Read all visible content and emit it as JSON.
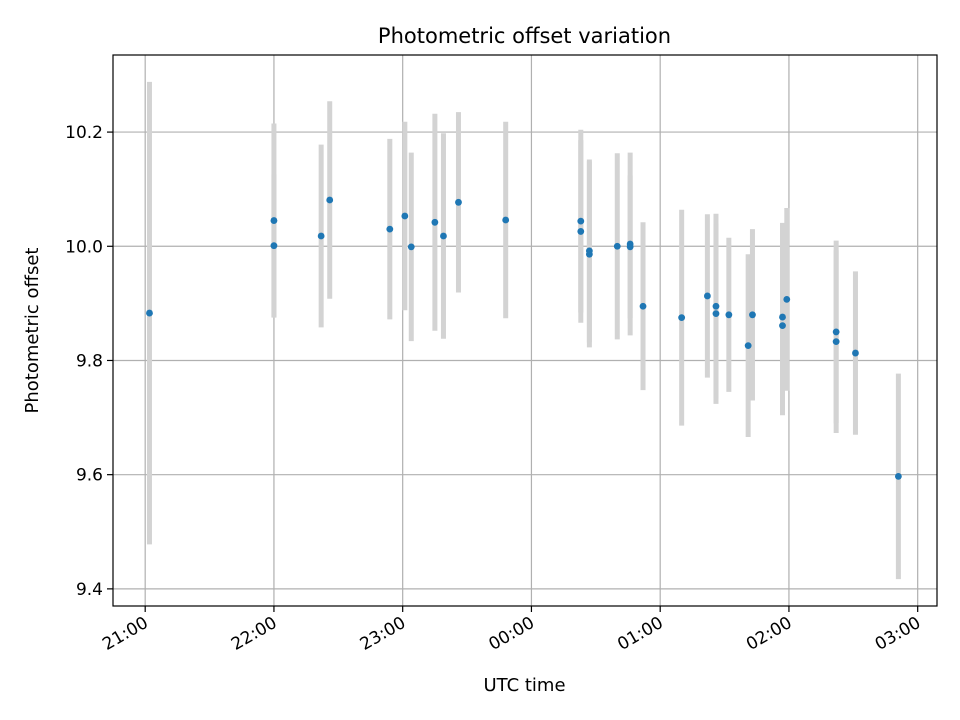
{
  "chart_data": {
    "type": "scatter",
    "title": "Photometric offset variation",
    "xlabel": "UTC time",
    "ylabel": "Photometric offset",
    "x_unit": "UTC time (hours after 21:00)",
    "xlim": [
      "20:45",
      "03:09"
    ],
    "ylim": [
      9.37,
      10.335
    ],
    "x_ticks": [
      "21:00",
      "22:00",
      "23:00",
      "00:00",
      "01:00",
      "02:00",
      "03:00"
    ],
    "y_ticks": [
      "9.4",
      "9.6",
      "9.8",
      "10.0",
      "10.2"
    ],
    "grid": true,
    "marker_color": "#1f77b4",
    "errorbar_color": "#d3d3d3",
    "series": [
      {
        "points": [
          {
            "x": "21:02",
            "y": 9.883,
            "err": 0.405
          },
          {
            "x": "22:00",
            "y": 10.001,
            "err": 0.125
          },
          {
            "x": "22:00",
            "y": 10.045,
            "err": 0.17
          },
          {
            "x": "22:22",
            "y": 10.018,
            "err": 0.16
          },
          {
            "x": "22:26",
            "y": 10.081,
            "err": 0.173
          },
          {
            "x": "22:54",
            "y": 10.03,
            "err": 0.158
          },
          {
            "x": "23:01",
            "y": 10.053,
            "err": 0.165
          },
          {
            "x": "23:04",
            "y": 9.999,
            "err": 0.165
          },
          {
            "x": "23:15",
            "y": 10.042,
            "err": 0.19
          },
          {
            "x": "23:19",
            "y": 10.018,
            "err": 0.18
          },
          {
            "x": "23:26",
            "y": 10.077,
            "err": 0.158
          },
          {
            "x": "23:48",
            "y": 10.046,
            "err": 0.172
          },
          {
            "x": "00:23",
            "y": 10.044,
            "err": 0.16
          },
          {
            "x": "00:23",
            "y": 10.026,
            "err": 0.16
          },
          {
            "x": "00:27",
            "y": 9.986,
            "err": 0.163
          },
          {
            "x": "00:27",
            "y": 9.992,
            "err": 0.16
          },
          {
            "x": "00:40",
            "y": 10.0,
            "err": 0.163
          },
          {
            "x": "00:46",
            "y": 9.999,
            "err": 0.125
          },
          {
            "x": "00:46",
            "y": 10.004,
            "err": 0.16
          },
          {
            "x": "00:52",
            "y": 9.895,
            "err": 0.147
          },
          {
            "x": "01:10",
            "y": 9.875,
            "err": 0.189
          },
          {
            "x": "01:22",
            "y": 9.913,
            "err": 0.143
          },
          {
            "x": "01:26",
            "y": 9.895,
            "err": 0.162
          },
          {
            "x": "01:26",
            "y": 9.882,
            "err": 0.158
          },
          {
            "x": "01:32",
            "y": 9.88,
            "err": 0.135
          },
          {
            "x": "01:41",
            "y": 9.826,
            "err": 0.16
          },
          {
            "x": "01:43",
            "y": 9.88,
            "err": 0.15
          },
          {
            "x": "01:57",
            "y": 9.876,
            "err": 0.165
          },
          {
            "x": "01:57",
            "y": 9.861,
            "err": 0.157
          },
          {
            "x": "01:59",
            "y": 9.907,
            "err": 0.16
          },
          {
            "x": "02:22",
            "y": 9.85,
            "err": 0.16
          },
          {
            "x": "02:22",
            "y": 9.833,
            "err": 0.16
          },
          {
            "x": "02:31",
            "y": 9.813,
            "err": 0.143
          },
          {
            "x": "02:51",
            "y": 9.597,
            "err": 0.18
          }
        ]
      }
    ]
  }
}
